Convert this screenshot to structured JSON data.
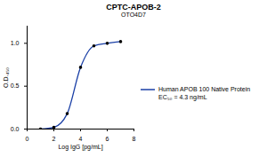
{
  "chart_data": {
    "type": "scatter",
    "title": "CPTC-APOB-2",
    "subtitle": "OTO4D7",
    "x_label": "Log IgG [pg/mL]",
    "y_label": "O.D.₄₅₀",
    "x": [
      1,
      2,
      3,
      4,
      5,
      6,
      7
    ],
    "series": [
      {
        "name": "Human APOB 100 Native Protein",
        "color": "#1a3fa6",
        "marker": "circle",
        "line_style": "solid",
        "values": [
          0.0,
          0.02,
          0.18,
          0.72,
          0.97,
          1.0,
          1.02
        ]
      }
    ],
    "annotations": [
      "EC₅₀ = 4.3 ng/mL"
    ],
    "xlim": [
      0,
      8
    ],
    "xticks": [
      0,
      2,
      4,
      6,
      8
    ],
    "ylim": [
      0,
      1.2
    ],
    "yticks": [
      {
        "value": 0,
        "label": "0.0"
      },
      {
        "value": 0.5,
        "label": "0.5"
      },
      {
        "value": 1,
        "label": "1.0"
      }
    ],
    "legend": "right",
    "grid": false
  }
}
